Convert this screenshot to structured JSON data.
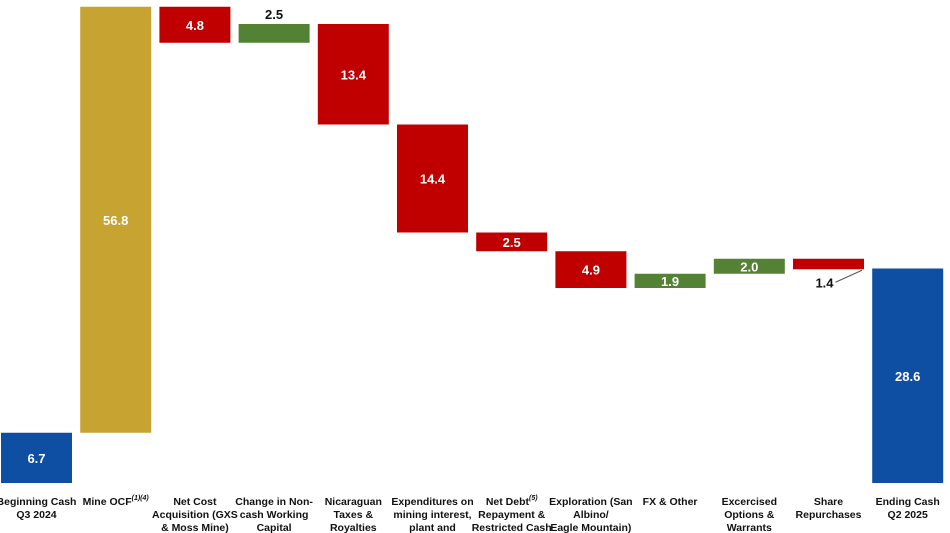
{
  "chart_data": {
    "type": "bar",
    "subtype": "waterfall",
    "title": "",
    "xlabel": "",
    "ylabel": "",
    "colors": {
      "start": "#0e4ea3",
      "mine_ocf": "#c7a432",
      "decrease": "#c00000",
      "increase": "#548235",
      "end": "#0e4ea3"
    },
    "bars": [
      {
        "label_lines": [
          "Beginning Cash",
          "Q3 2024"
        ],
        "value": "6.7",
        "kind": "start",
        "base": 0,
        "top": 6.7,
        "label_color": "#ffffff",
        "label_pos": "inside"
      },
      {
        "label_lines": [
          "Mine OCF"
        ],
        "superscript": "(1)(4)",
        "value": "56.8",
        "kind": "mine_ocf",
        "base": 6.7,
        "top": 63.5,
        "label_color": "#ffffff",
        "label_pos": "inside"
      },
      {
        "label_lines": [
          "Net Cost",
          "Acquisition (GXS",
          "& Moss Mine)"
        ],
        "value": "4.8",
        "kind": "decrease",
        "base": 58.7,
        "top": 63.5,
        "label_color": "#ffffff",
        "label_pos": "inside"
      },
      {
        "label_lines": [
          "Change in Non-",
          "cash Working",
          "Capital"
        ],
        "value": "2.5",
        "kind": "increase",
        "base": 58.7,
        "top": 61.2,
        "label_color": "#111111",
        "label_pos": "above"
      },
      {
        "label_lines": [
          "Nicaraguan",
          "Taxes &",
          "Royalties"
        ],
        "value": "13.4",
        "kind": "decrease",
        "base": 47.8,
        "top": 61.2,
        "label_color": "#ffffff",
        "label_pos": "inside"
      },
      {
        "label_lines": [
          "Expenditures on",
          "mining interest,",
          "plant and"
        ],
        "value": "14.4",
        "kind": "decrease",
        "base": 33.4,
        "top": 47.8,
        "label_color": "#ffffff",
        "label_pos": "inside"
      },
      {
        "label_lines": [
          "Net Debt",
          "Repayment &",
          "Restricted Cash"
        ],
        "superscript": "(5)",
        "value": "2.5",
        "kind": "decrease",
        "base": 30.9,
        "top": 33.4,
        "label_color": "#ffffff",
        "label_pos": "inside"
      },
      {
        "label_lines": [
          "Exploration (San",
          "Albino/",
          "Eagle Mountain)"
        ],
        "value": "4.9",
        "kind": "decrease",
        "base": 26.0,
        "top": 30.9,
        "label_color": "#ffffff",
        "label_pos": "inside"
      },
      {
        "label_lines": [
          "FX & Other"
        ],
        "value": "1.9",
        "kind": "increase",
        "base": 26.0,
        "top": 27.9,
        "label_color": "#ffffff",
        "label_pos": "inside"
      },
      {
        "label_lines": [
          "Excercised",
          "Options &",
          "Warrants"
        ],
        "value": "2.0",
        "kind": "increase",
        "base": 27.9,
        "top": 29.9,
        "label_color": "#ffffff",
        "label_pos": "inside"
      },
      {
        "label_lines": [
          "Share",
          "Repurchases"
        ],
        "value": "1.4",
        "kind": "decrease",
        "base": 28.5,
        "top": 29.9,
        "label_color": "#111111",
        "label_pos": "below-callout"
      },
      {
        "label_lines": [
          "Ending Cash",
          "Q2 2025"
        ],
        "value": "28.6",
        "kind": "end",
        "base": 0,
        "top": 28.6,
        "label_color": "#ffffff",
        "label_pos": "inside"
      }
    ]
  }
}
